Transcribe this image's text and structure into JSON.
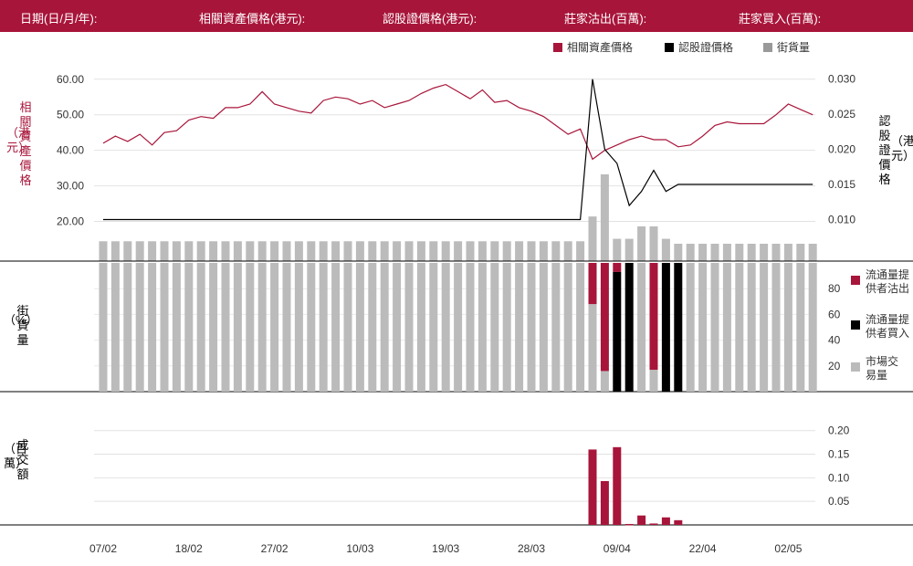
{
  "header": {
    "date": "日期(日/月/年):",
    "underlying": "相關資產價格(港元):",
    "warrant": "認股證價格(港元):",
    "sell": "莊家沽出(百萬):",
    "buy": "莊家買入(百萬):"
  },
  "legend": {
    "underlying": "相關資產價格",
    "warrant": "認股證價格",
    "outstanding": "街貨量"
  },
  "axis_labels": {
    "left_top": [
      "相",
      "關",
      "資",
      "產",
      "價",
      "格"
    ],
    "left_top_unit": "（港元）",
    "right_top": [
      "認",
      "股",
      "證",
      "價",
      "格"
    ],
    "right_top_unit": "（港元）",
    "middle": [
      "街",
      "貨",
      "量"
    ],
    "middle_unit": "（%）",
    "bottom": [
      "成",
      "交",
      "額"
    ],
    "bottom_unit": "（百萬）"
  },
  "side_legend": {
    "sell": "流通量提供者沽出",
    "buy": "流通量提供者買入",
    "market": "市場交易量"
  },
  "colors": {
    "accent": "#a8153a",
    "black": "#000000",
    "gray": "#bbbbbb"
  },
  "chart_data": {
    "type": "line",
    "x_tick_labels": [
      "07/02",
      "18/02",
      "27/02",
      "10/03",
      "19/03",
      "28/03",
      "09/04",
      "22/04",
      "02/05"
    ],
    "x_tick_index": [
      0,
      7,
      14,
      21,
      28,
      35,
      42,
      49,
      56
    ],
    "left_ticks": [
      "60.00",
      "50.00",
      "40.00",
      "30.00",
      "20.00"
    ],
    "left_range": [
      15,
      62
    ],
    "right_ticks": [
      "0.030",
      "0.025",
      "0.020",
      "0.015",
      "0.010"
    ],
    "right_range": [
      0.0072,
      0.031
    ],
    "middle_ticks": [
      "80",
      "60",
      "40",
      "20"
    ],
    "middle_range": [
      0,
      100
    ],
    "bottom_ticks": [
      "0.20",
      "0.15",
      "0.10",
      "0.05"
    ],
    "bottom_range": [
      0,
      0.215
    ],
    "underlying_price": [
      42.0,
      44.0,
      42.5,
      44.5,
      41.5,
      45.0,
      45.5,
      48.5,
      49.5,
      49.0,
      52.0,
      52.0,
      53.0,
      56.5,
      53.0,
      52.0,
      51.0,
      50.5,
      54.0,
      55.0,
      54.5,
      53.0,
      54.0,
      52.0,
      53.0,
      54.0,
      56.0,
      57.5,
      58.5,
      56.5,
      54.5,
      57.0,
      53.5,
      54.0,
      52.0,
      51.0,
      49.5,
      47.0,
      44.5,
      46.0,
      37.5,
      40.0,
      41.5,
      43.0,
      44.0,
      43.0,
      43.0,
      41.0,
      41.5,
      44.0,
      47.0,
      48.0,
      47.5,
      47.5,
      47.5,
      50.0,
      53.0,
      51.5,
      50.0
    ],
    "warrant_price": [
      0.01,
      0.01,
      0.01,
      0.01,
      0.01,
      0.01,
      0.01,
      0.01,
      0.01,
      0.01,
      0.01,
      0.01,
      0.01,
      0.01,
      0.01,
      0.01,
      0.01,
      0.01,
      0.01,
      0.01,
      0.01,
      0.01,
      0.01,
      0.01,
      0.01,
      0.01,
      0.01,
      0.01,
      0.01,
      0.01,
      0.01,
      0.01,
      0.01,
      0.01,
      0.01,
      0.01,
      0.01,
      0.01,
      0.01,
      0.01,
      0.03,
      0.02,
      0.018,
      0.012,
      0.014,
      0.017,
      0.014,
      0.015,
      0.015,
      0.015,
      0.015,
      0.015,
      0.015,
      0.015,
      0.015,
      0.015,
      0.015,
      0.015,
      0.015
    ],
    "outstanding_top": [
      8.0,
      8.0,
      8.0,
      8.0,
      8.0,
      8.0,
      8.0,
      8.0,
      8.0,
      8.0,
      8.0,
      8.0,
      8.0,
      8.0,
      8.0,
      8.0,
      8.0,
      8.0,
      8.0,
      8.0,
      8.0,
      8.0,
      8.0,
      8.0,
      8.0,
      8.0,
      8.0,
      8.0,
      8.0,
      8.0,
      8.0,
      8.0,
      8.0,
      8.0,
      8.0,
      8.0,
      8.0,
      8.0,
      8.0,
      8.0,
      18.0,
      35.0,
      9.0,
      9.0,
      14.0,
      14.0,
      9.0,
      7.0,
      7.0,
      7.0,
      7.0,
      7.0,
      7.0,
      7.0,
      7.0,
      7.0,
      7.0,
      7.0,
      7.0
    ],
    "outstanding_pct": [
      100,
      100,
      100,
      100,
      100,
      100,
      100,
      100,
      100,
      100,
      100,
      100,
      100,
      100,
      100,
      100,
      100,
      100,
      100,
      100,
      100,
      100,
      100,
      100,
      100,
      100,
      100,
      100,
      100,
      100,
      100,
      100,
      100,
      100,
      100,
      100,
      100,
      100,
      100,
      100,
      68,
      16,
      93,
      100,
      100,
      17,
      100,
      100,
      100,
      100,
      100,
      100,
      100,
      100,
      100,
      100,
      100,
      100,
      100
    ],
    "lp_sell_pct": [
      0,
      0,
      0,
      0,
      0,
      0,
      0,
      0,
      0,
      0,
      0,
      0,
      0,
      0,
      0,
      0,
      0,
      0,
      0,
      0,
      0,
      0,
      0,
      0,
      0,
      0,
      0,
      0,
      0,
      0,
      0,
      0,
      0,
      0,
      0,
      0,
      0,
      0,
      0,
      0,
      32,
      84,
      7,
      0,
      0,
      83,
      0,
      0,
      0,
      0,
      0,
      0,
      0,
      0,
      0,
      0,
      0,
      0,
      0
    ],
    "lp_buy_pct": [
      0,
      0,
      0,
      0,
      0,
      0,
      0,
      0,
      0,
      0,
      0,
      0,
      0,
      0,
      0,
      0,
      0,
      0,
      0,
      0,
      0,
      0,
      0,
      0,
      0,
      0,
      0,
      0,
      0,
      0,
      0,
      0,
      0,
      0,
      0,
      0,
      0,
      0,
      0,
      0,
      0,
      0,
      93,
      100,
      0,
      0,
      100,
      100,
      0,
      0,
      0,
      0,
      0,
      0,
      0,
      0,
      0,
      0,
      0
    ],
    "turnover": [
      0,
      0,
      0,
      0,
      0,
      0,
      0,
      0,
      0,
      0,
      0,
      0,
      0,
      0,
      0,
      0,
      0,
      0,
      0,
      0,
      0,
      0,
      0,
      0,
      0,
      0,
      0,
      0,
      0,
      0,
      0,
      0,
      0,
      0,
      0,
      0,
      0,
      0,
      0,
      0,
      0.16,
      0.093,
      0.165,
      0.002,
      0.02,
      0.003,
      0.016,
      0.01,
      0,
      0,
      0,
      0,
      0,
      0,
      0,
      0,
      0,
      0,
      0
    ]
  }
}
